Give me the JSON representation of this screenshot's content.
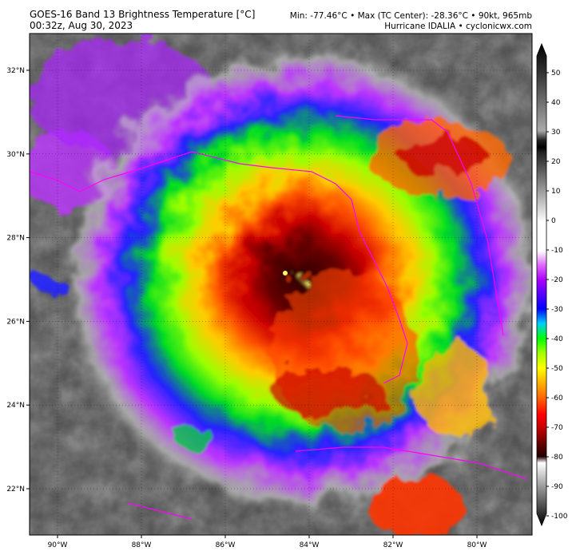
{
  "header": {
    "title": "GOES-16 Band 13 Brightness Temperature [°C]",
    "subtitle": "00:32z, Aug 30, 2023",
    "info": "Min: -77.46°C • Max (TC Center): -28.36°C • 90kt, 965mb",
    "credit": "Hurricane IDALIA • cyclonicwx.com"
  },
  "map": {
    "lat_labels": [
      "32°N",
      "30°N",
      "28°N",
      "26°N",
      "24°N",
      "22°N"
    ],
    "lon_labels": [
      "90°W",
      "88°W",
      "86°W",
      "84°W",
      "82°W",
      "80°W"
    ]
  },
  "colorbar": {
    "ticks": [
      50,
      40,
      30,
      20,
      10,
      0,
      -10,
      -20,
      -30,
      -40,
      -50,
      -60,
      -70,
      -80,
      -90,
      -100
    ]
  }
}
